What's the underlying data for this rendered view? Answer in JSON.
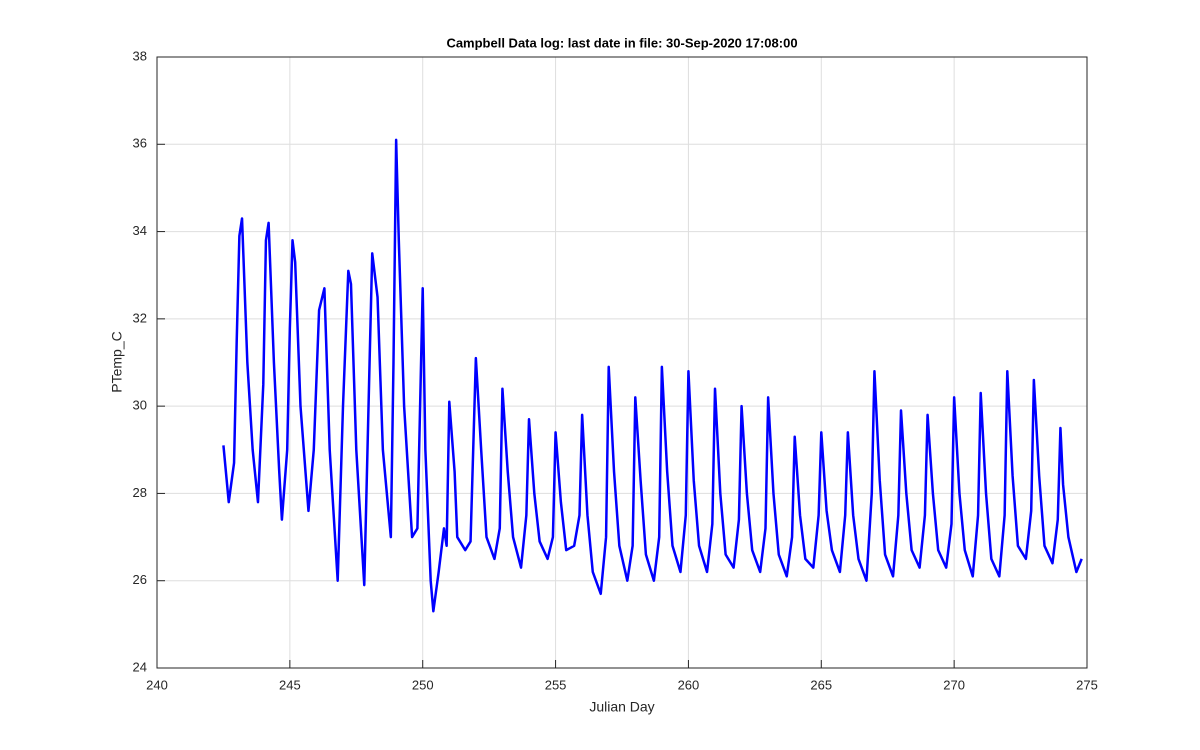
{
  "chart_data": {
    "type": "line",
    "title": "Campbell Data log: last date in file: 30-Sep-2020 17:08:00",
    "xlabel": "Julian Day",
    "ylabel": "PTemp_C",
    "xlim": [
      240,
      275
    ],
    "xticks": [
      240,
      245,
      250,
      255,
      260,
      265,
      270,
      275
    ],
    "ylim": [
      24,
      38
    ],
    "yticks": [
      24,
      26,
      28,
      30,
      32,
      34,
      36,
      38
    ],
    "grid": true,
    "series": [
      {
        "color": "#0000ff",
        "x": [
          242.5,
          242.7,
          242.9,
          243.0,
          243.1,
          243.2,
          243.4,
          243.6,
          243.8,
          244.0,
          244.1,
          244.2,
          244.4,
          244.6,
          244.7,
          244.9,
          245.0,
          245.1,
          245.2,
          245.4,
          245.7,
          245.9,
          246.1,
          246.3,
          246.5,
          246.8,
          247.0,
          247.2,
          247.3,
          247.5,
          247.8,
          248.0,
          248.1,
          248.3,
          248.5,
          248.8,
          248.9,
          249.0,
          249.1,
          249.3,
          249.6,
          249.8,
          250.0,
          250.1,
          250.2,
          250.3,
          250.4,
          250.6,
          250.8,
          250.9,
          251.0,
          251.2,
          251.3,
          251.6,
          251.8,
          252.0,
          252.2,
          252.4,
          252.7,
          252.9,
          253.0,
          253.2,
          253.4,
          253.7,
          253.9,
          254.0,
          254.2,
          254.4,
          254.7,
          254.9,
          255.0,
          255.2,
          255.4,
          255.7,
          255.9,
          256.0,
          256.2,
          256.4,
          256.7,
          256.9,
          257.0,
          257.2,
          257.4,
          257.7,
          257.9,
          258.0,
          258.2,
          258.4,
          258.7,
          258.9,
          259.0,
          259.2,
          259.4,
          259.7,
          259.9,
          260.0,
          260.2,
          260.4,
          260.7,
          260.9,
          261.0,
          261.2,
          261.4,
          261.7,
          261.9,
          262.0,
          262.2,
          262.4,
          262.7,
          262.9,
          263.0,
          263.2,
          263.4,
          263.7,
          263.9,
          264.0,
          264.2,
          264.4,
          264.7,
          264.9,
          265.0,
          265.2,
          265.4,
          265.7,
          265.9,
          266.0,
          266.2,
          266.4,
          266.7,
          266.9,
          267.0,
          267.2,
          267.4,
          267.7,
          267.9,
          268.0,
          268.2,
          268.4,
          268.7,
          268.9,
          269.0,
          269.2,
          269.4,
          269.7,
          269.9,
          270.0,
          270.2,
          270.4,
          270.7,
          270.9,
          271.0,
          271.2,
          271.4,
          271.7,
          271.9,
          272.0,
          272.2,
          272.4,
          272.7,
          272.9,
          273.0,
          273.2,
          273.4,
          273.7,
          273.9,
          274.0,
          274.1,
          274.3,
          274.6,
          274.8
        ],
        "values": [
          29.1,
          27.8,
          28.7,
          31.5,
          33.9,
          34.3,
          31,
          29,
          27.8,
          30.5,
          33.8,
          34.2,
          31,
          28.5,
          27.4,
          29,
          31.8,
          33.8,
          33.3,
          30,
          27.6,
          29,
          32.2,
          32.7,
          29,
          26,
          30,
          33.1,
          32.8,
          29,
          25.9,
          31,
          33.5,
          32.5,
          29,
          27,
          31,
          36.1,
          33.8,
          30,
          27,
          27.2,
          32.7,
          29,
          27.5,
          26,
          25.3,
          26.2,
          27.2,
          26.8,
          30.1,
          28.5,
          27,
          26.7,
          26.9,
          31.1,
          29,
          27,
          26.5,
          27.2,
          30.4,
          28.5,
          27,
          26.3,
          27.5,
          29.7,
          28,
          26.9,
          26.5,
          27,
          29.4,
          27.8,
          26.7,
          26.8,
          27.5,
          29.8,
          27.5,
          26.2,
          25.7,
          27,
          30.9,
          28.5,
          26.8,
          26,
          26.8,
          30.2,
          28.3,
          26.6,
          26,
          27,
          30.9,
          28.5,
          26.8,
          26.2,
          27.5,
          30.8,
          28.3,
          26.8,
          26.2,
          27.3,
          30.4,
          28,
          26.6,
          26.3,
          27.4,
          30,
          28,
          26.7,
          26.2,
          27.2,
          30.2,
          28,
          26.6,
          26.1,
          27,
          29.3,
          27.5,
          26.5,
          26.3,
          27.5,
          29.4,
          27.6,
          26.7,
          26.2,
          27.5,
          29.4,
          27.5,
          26.5,
          26,
          28,
          30.8,
          28.3,
          26.6,
          26.1,
          27.5,
          29.9,
          28,
          26.7,
          26.3,
          27.5,
          29.8,
          28,
          26.7,
          26.3,
          27.3,
          30.2,
          28,
          26.7,
          26.1,
          27.5,
          30.3,
          28,
          26.5,
          26.1,
          27.5,
          30.8,
          28.4,
          26.8,
          26.5,
          27.6,
          30.6,
          28.4,
          26.8,
          26.4,
          27.4,
          29.5,
          28.2,
          27,
          26.2,
          26.5
        ]
      }
    ]
  }
}
